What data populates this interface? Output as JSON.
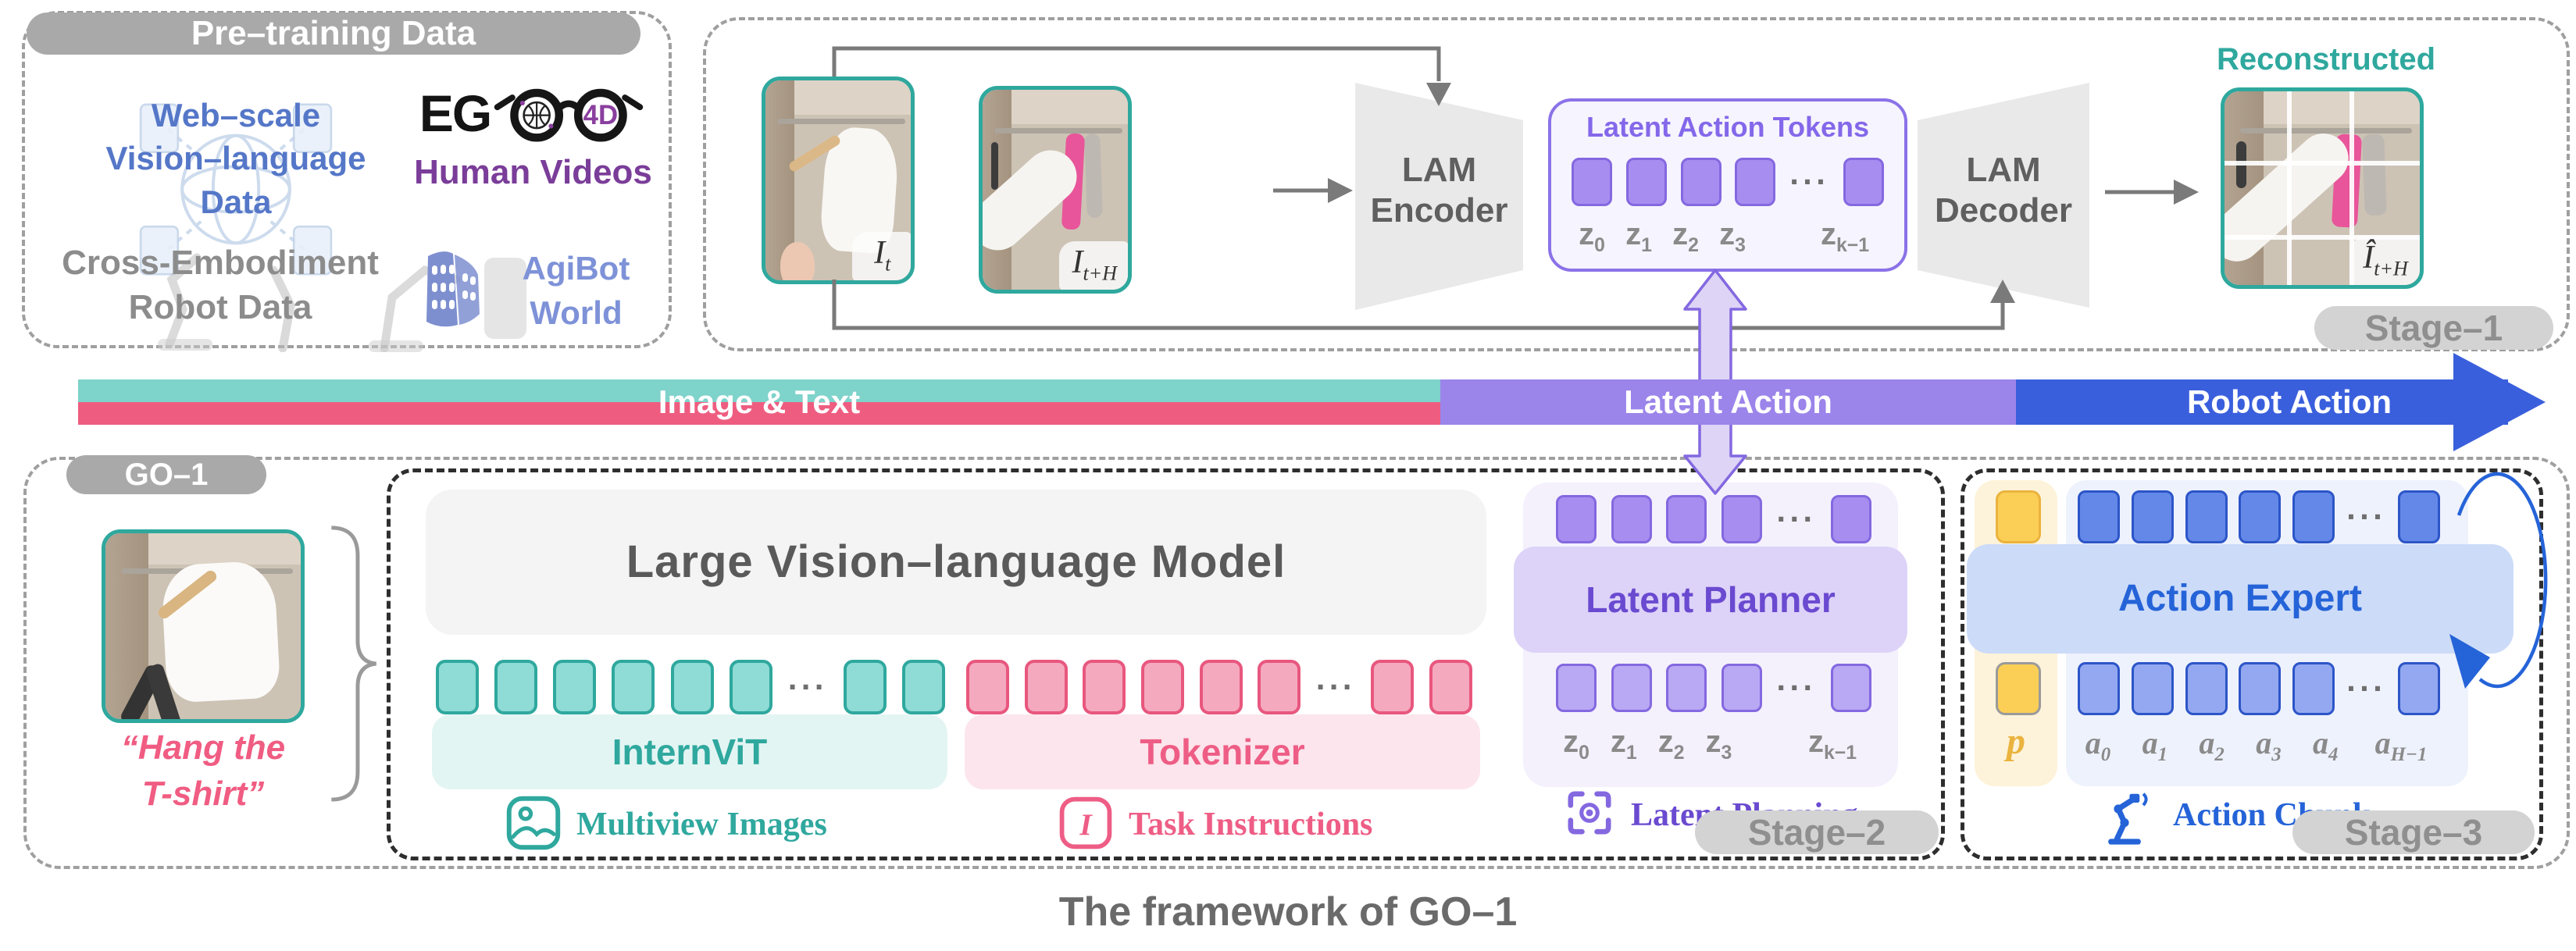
{
  "pretraining": {
    "title": "Pre–training Data",
    "web_scale_lines": [
      "Web–scale",
      "Vision–language",
      "Data"
    ],
    "ego_prefix": "EG",
    "ego_4d": "4D",
    "human_videos": "Human Videos",
    "cross_embodiment_lines": [
      "Cross-Embodiment",
      "Robot Data"
    ],
    "agibot_lines": [
      "AgiBot",
      "World"
    ]
  },
  "stage1": {
    "badge": "Stage–1",
    "encoder_lines": [
      "LAM",
      "Encoder"
    ],
    "decoder_lines": [
      "LAM",
      "Decoder"
    ],
    "tokens_title": "Latent Action Tokens",
    "frame_t": {
      "base": "I",
      "sub": "t"
    },
    "frame_t_h": {
      "base": "I",
      "sub": "t+H"
    },
    "reconstructed_label": "Reconstructed",
    "frame_recon": {
      "base": "Î",
      "sub": "t+H"
    }
  },
  "timeline": {
    "image_text": "Image & Text",
    "latent_action": "Latent Action",
    "robot_action": "Robot Action"
  },
  "go1": {
    "badge": "GO–1",
    "instruction_lines": [
      "“Hang the",
      "T-shirt”"
    ]
  },
  "stage2": {
    "badge": "Stage–2",
    "lvm": "Large Vision–language Model",
    "internvit": "InternViT",
    "tokenizer": "Tokenizer",
    "multiview": "Multiview Images",
    "task_instructions": "Task Instructions",
    "latent_planner": "Latent Planner",
    "latent_planning": "Latent Planning"
  },
  "stage3": {
    "badge": "Stage–3",
    "action_expert": "Action Expert",
    "proprio": "p",
    "action_chunk": "Action Chunk"
  },
  "labels": {
    "z": [
      {
        "base": "z",
        "sub": "0"
      },
      {
        "base": "z",
        "sub": "1"
      },
      {
        "base": "z",
        "sub": "2"
      },
      {
        "base": "z",
        "sub": "3"
      },
      {
        "base": "z",
        "sub": "k−1"
      }
    ],
    "a": [
      {
        "base": "a",
        "sub": "0"
      },
      {
        "base": "a",
        "sub": "1"
      },
      {
        "base": "a",
        "sub": "2"
      },
      {
        "base": "a",
        "sub": "3"
      },
      {
        "base": "a",
        "sub": "4"
      },
      {
        "base": "a",
        "sub": "H−1"
      }
    ]
  },
  "caption": "The framework of GO–1",
  "misc": {
    "dots": "···"
  },
  "colors": {
    "teal": "#2fa89e",
    "pink": "#ee5d80",
    "purple": "#8468e0",
    "blue": "#2c55c8",
    "bar_teal": "#7ed3cb",
    "bar_pink": "#ee5d80",
    "bar_purple": "#9b84ea",
    "bar_blue": "#3a5fdd",
    "yellow": "#eab33e",
    "badge_gray": "#d3d3d3"
  }
}
